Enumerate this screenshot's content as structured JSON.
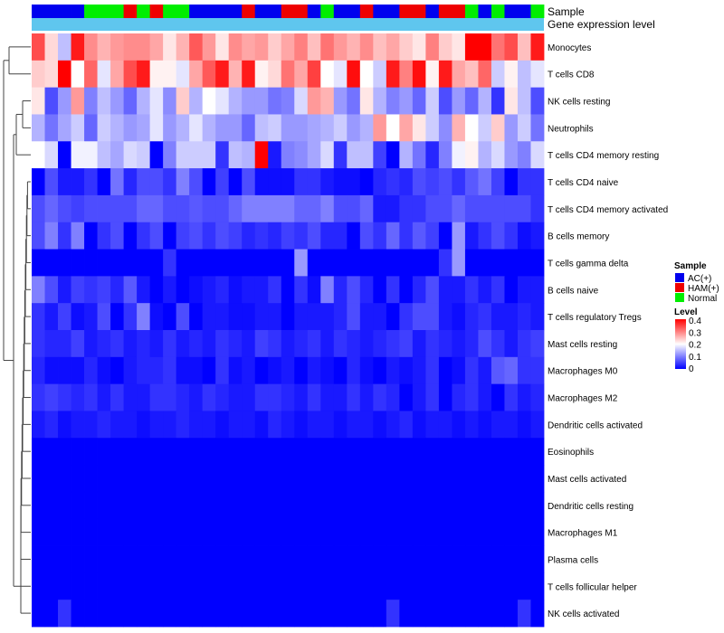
{
  "chart_data": {
    "type": "heatmap",
    "title": "",
    "annotation_rows": [
      "Sample",
      "Gene expression level"
    ],
    "sample_groups": [
      "AC",
      "AC",
      "AC",
      "AC",
      "N",
      "N",
      "N",
      "H",
      "N",
      "H",
      "N",
      "N",
      "AC",
      "AC",
      "AC",
      "AC",
      "H",
      "AC",
      "AC",
      "H",
      "H",
      "AC",
      "N",
      "AC",
      "AC",
      "H",
      "AC",
      "AC",
      "H",
      "H",
      "AC",
      "H",
      "H",
      "N",
      "AC",
      "N",
      "AC",
      "AC",
      "N"
    ],
    "gene_expression_level_color": "#5fc6ee",
    "sample_legend": {
      "title": "Sample",
      "entries": [
        {
          "key": "AC",
          "label": "AC(+)",
          "color": "#0000ee"
        },
        {
          "key": "H",
          "label": "HAM(+)",
          "color": "#ee0000"
        },
        {
          "key": "N",
          "label": "Normal",
          "color": "#00ee00"
        }
      ]
    },
    "level_legend": {
      "title": "Level",
      "ticks": [
        "0.4",
        "0.3",
        "0.2",
        "0.1",
        "0"
      ],
      "range": [
        0,
        0.4
      ]
    },
    "rows": [
      "Monocytes",
      "T cells CD8",
      "NK cells resting",
      "Neutrophils",
      "T cells CD4 memory resting",
      "T cells CD4 naive",
      "T cells CD4 memory activated",
      "B cells memory",
      "T cells gamma delta",
      "B cells naive",
      "T cells regulatory  Tregs",
      "Mast cells resting",
      "Macrophages M0",
      "Macrophages M2",
      "Dendritic cells activated",
      "Eosinophils",
      "Mast cells activated",
      "Dendritic cells resting",
      "Macrophages M1",
      "Plasma cells",
      "T cells follicular helper",
      "NK cells activated"
    ],
    "values": [
      [
        0.34,
        0.23,
        0.15,
        0.38,
        0.29,
        0.26,
        0.28,
        0.29,
        0.29,
        0.27,
        0.22,
        0.26,
        0.33,
        0.28,
        0.22,
        0.29,
        0.27,
        0.28,
        0.24,
        0.27,
        0.3,
        0.25,
        0.31,
        0.28,
        0.26,
        0.29,
        0.25,
        0.27,
        0.24,
        0.22,
        0.3,
        0.24,
        0.22,
        0.4,
        0.4,
        0.31,
        0.34,
        0.25,
        0.38
      ],
      [
        0.24,
        0.23,
        0.4,
        0.2,
        0.32,
        0.18,
        0.27,
        0.34,
        0.38,
        0.21,
        0.21,
        0.18,
        0.27,
        0.33,
        0.38,
        0.26,
        0.38,
        0.21,
        0.23,
        0.31,
        0.27,
        0.35,
        0.2,
        0.18,
        0.39,
        0.2,
        0.16,
        0.38,
        0.3,
        0.39,
        0.21,
        0.38,
        0.27,
        0.25,
        0.32,
        0.16,
        0.21,
        0.15,
        0.18
      ],
      [
        0.22,
        0.06,
        0.12,
        0.28,
        0.1,
        0.15,
        0.12,
        0.08,
        0.14,
        0.18,
        0.11,
        0.24,
        0.14,
        0.2,
        0.18,
        0.14,
        0.12,
        0.12,
        0.09,
        0.1,
        0.17,
        0.28,
        0.26,
        0.12,
        0.09,
        0.22,
        0.14,
        0.1,
        0.12,
        0.08,
        0.16,
        0.06,
        0.12,
        0.08,
        0.14,
        0.04,
        0.22,
        0.15,
        0.06
      ],
      [
        0.14,
        0.09,
        0.13,
        0.16,
        0.08,
        0.16,
        0.14,
        0.12,
        0.13,
        0.18,
        0.12,
        0.14,
        0.18,
        0.14,
        0.12,
        0.12,
        0.08,
        0.15,
        0.16,
        0.12,
        0.12,
        0.13,
        0.14,
        0.16,
        0.12,
        0.14,
        0.28,
        0.2,
        0.27,
        0.22,
        0.16,
        0.11,
        0.26,
        0.2,
        0.16,
        0.24,
        0.12,
        0.16,
        0.09
      ],
      [
        0.2,
        0.17,
        0.0,
        0.19,
        0.19,
        0.15,
        0.13,
        0.17,
        0.16,
        0.0,
        0.1,
        0.16,
        0.16,
        0.16,
        0.04,
        0.15,
        0.14,
        0.4,
        0.02,
        0.1,
        0.11,
        0.13,
        0.17,
        0.04,
        0.15,
        0.15,
        0.05,
        0.0,
        0.14,
        0.09,
        0.03,
        0.1,
        0.19,
        0.21,
        0.14,
        0.17,
        0.12,
        0.1,
        0.17
      ],
      [
        0.0,
        0.06,
        0.02,
        0.02,
        0.04,
        0.0,
        0.09,
        0.03,
        0.06,
        0.06,
        0.04,
        0.1,
        0.06,
        0.0,
        0.05,
        0.0,
        0.06,
        0.01,
        0.01,
        0.01,
        0.04,
        0.04,
        0.02,
        0.01,
        0.01,
        0.0,
        0.03,
        0.04,
        0.03,
        0.06,
        0.05,
        0.06,
        0.04,
        0.07,
        0.09,
        0.05,
        0.0,
        0.04,
        0.04
      ],
      [
        0.06,
        0.08,
        0.06,
        0.05,
        0.06,
        0.06,
        0.06,
        0.06,
        0.08,
        0.08,
        0.06,
        0.06,
        0.07,
        0.06,
        0.06,
        0.08,
        0.1,
        0.1,
        0.1,
        0.1,
        0.08,
        0.08,
        0.1,
        0.06,
        0.06,
        0.08,
        0.02,
        0.02,
        0.04,
        0.04,
        0.06,
        0.06,
        0.08,
        0.06,
        0.06,
        0.06,
        0.06,
        0.06,
        0.04
      ],
      [
        0.06,
        0.1,
        0.04,
        0.1,
        0.0,
        0.04,
        0.06,
        0.0,
        0.04,
        0.06,
        0.0,
        0.05,
        0.06,
        0.04,
        0.06,
        0.05,
        0.03,
        0.04,
        0.03,
        0.05,
        0.04,
        0.06,
        0.03,
        0.03,
        0.0,
        0.06,
        0.04,
        0.08,
        0.04,
        0.07,
        0.05,
        0.0,
        0.12,
        0.02,
        0.04,
        0.06,
        0.04,
        0.01,
        0.02
      ],
      [
        0.0,
        0.0,
        0.0,
        0.0,
        0.0,
        0.0,
        0.0,
        0.0,
        0.0,
        0.0,
        0.04,
        0.0,
        0.0,
        0.0,
        0.0,
        0.0,
        0.0,
        0.0,
        0.0,
        0.0,
        0.12,
        0.0,
        0.0,
        0.0,
        0.0,
        0.0,
        0.0,
        0.0,
        0.0,
        0.0,
        0.0,
        0.04,
        0.12,
        0.0,
        0.0,
        0.0,
        0.0,
        0.0,
        0.0
      ],
      [
        0.1,
        0.06,
        0.02,
        0.05,
        0.04,
        0.05,
        0.03,
        0.07,
        0.02,
        0.0,
        0.02,
        0.0,
        0.01,
        0.02,
        0.03,
        0.01,
        0.02,
        0.02,
        0.04,
        0.0,
        0.04,
        0.01,
        0.1,
        0.03,
        0.06,
        0.03,
        0.0,
        0.04,
        0.0,
        0.03,
        0.06,
        0.02,
        0.02,
        0.04,
        0.02,
        0.04,
        0.0,
        0.02,
        0.02
      ],
      [
        0.04,
        0.02,
        0.05,
        0.01,
        0.02,
        0.06,
        0.0,
        0.04,
        0.1,
        0.01,
        0.0,
        0.06,
        0.0,
        0.02,
        0.02,
        0.01,
        0.01,
        0.02,
        0.02,
        0.0,
        0.02,
        0.02,
        0.02,
        0.03,
        0.06,
        0.02,
        0.02,
        0.0,
        0.04,
        0.06,
        0.06,
        0.02,
        0.01,
        0.03,
        0.04,
        0.02,
        0.02,
        0.03,
        0.02
      ],
      [
        0.04,
        0.03,
        0.03,
        0.05,
        0.02,
        0.03,
        0.04,
        0.02,
        0.03,
        0.02,
        0.04,
        0.02,
        0.03,
        0.02,
        0.04,
        0.03,
        0.02,
        0.05,
        0.04,
        0.02,
        0.03,
        0.04,
        0.02,
        0.04,
        0.03,
        0.02,
        0.03,
        0.04,
        0.05,
        0.02,
        0.04,
        0.03,
        0.02,
        0.03,
        0.06,
        0.04,
        0.02,
        0.04,
        0.05
      ],
      [
        0.03,
        0.01,
        0.01,
        0.01,
        0.03,
        0.01,
        0.0,
        0.02,
        0.03,
        0.03,
        0.04,
        0.01,
        0.01,
        0.0,
        0.04,
        0.01,
        0.02,
        0.0,
        0.01,
        0.02,
        0.0,
        0.02,
        0.01,
        0.0,
        0.03,
        0.01,
        0.0,
        0.02,
        0.01,
        0.02,
        0.04,
        0.0,
        0.01,
        0.04,
        0.02,
        0.07,
        0.08,
        0.04,
        0.04
      ],
      [
        0.04,
        0.05,
        0.04,
        0.03,
        0.04,
        0.02,
        0.04,
        0.02,
        0.02,
        0.04,
        0.04,
        0.03,
        0.02,
        0.04,
        0.03,
        0.02,
        0.02,
        0.04,
        0.04,
        0.03,
        0.02,
        0.04,
        0.02,
        0.02,
        0.04,
        0.02,
        0.04,
        0.03,
        0.0,
        0.02,
        0.04,
        0.0,
        0.03,
        0.04,
        0.02,
        0.0,
        0.04,
        0.02,
        0.03
      ],
      [
        0.02,
        0.03,
        0.01,
        0.02,
        0.02,
        0.03,
        0.02,
        0.02,
        0.01,
        0.02,
        0.02,
        0.03,
        0.02,
        0.02,
        0.01,
        0.02,
        0.02,
        0.01,
        0.03,
        0.02,
        0.01,
        0.02,
        0.02,
        0.01,
        0.02,
        0.02,
        0.01,
        0.02,
        0.03,
        0.01,
        0.02,
        0.02,
        0.01,
        0.02,
        0.01,
        0.02,
        0.02,
        0.01,
        0.02
      ],
      [
        0,
        0,
        0,
        0,
        0,
        0,
        0,
        0,
        0,
        0,
        0,
        0,
        0,
        0,
        0,
        0,
        0,
        0,
        0,
        0,
        0,
        0,
        0,
        0,
        0,
        0,
        0,
        0,
        0,
        0,
        0,
        0,
        0,
        0,
        0,
        0,
        0,
        0,
        0
      ],
      [
        0,
        0,
        0,
        0,
        0,
        0,
        0,
        0,
        0,
        0,
        0,
        0,
        0,
        0,
        0,
        0,
        0,
        0,
        0,
        0,
        0,
        0,
        0,
        0,
        0,
        0,
        0,
        0,
        0,
        0,
        0,
        0,
        0,
        0,
        0,
        0,
        0,
        0,
        0
      ],
      [
        0,
        0,
        0,
        0,
        0,
        0,
        0,
        0,
        0,
        0,
        0,
        0,
        0,
        0,
        0,
        0,
        0,
        0,
        0,
        0,
        0,
        0,
        0,
        0,
        0,
        0,
        0,
        0,
        0,
        0,
        0,
        0,
        0,
        0,
        0,
        0,
        0,
        0,
        0
      ],
      [
        0,
        0,
        0,
        0,
        0,
        0,
        0,
        0,
        0,
        0,
        0,
        0,
        0,
        0,
        0,
        0,
        0,
        0,
        0,
        0,
        0,
        0,
        0,
        0,
        0,
        0,
        0,
        0,
        0,
        0,
        0,
        0,
        0,
        0,
        0,
        0,
        0,
        0,
        0
      ],
      [
        0,
        0,
        0,
        0,
        0,
        0,
        0,
        0,
        0,
        0,
        0,
        0,
        0,
        0,
        0,
        0,
        0,
        0,
        0,
        0,
        0,
        0,
        0,
        0,
        0,
        0,
        0,
        0,
        0,
        0,
        0,
        0,
        0,
        0,
        0,
        0,
        0,
        0,
        0
      ],
      [
        0,
        0,
        0,
        0,
        0,
        0,
        0,
        0,
        0,
        0,
        0,
        0,
        0,
        0,
        0,
        0,
        0,
        0,
        0,
        0,
        0,
        0,
        0,
        0,
        0,
        0,
        0,
        0,
        0,
        0,
        0,
        0,
        0,
        0,
        0,
        0,
        0,
        0,
        0
      ],
      [
        0,
        0,
        0.04,
        0,
        0,
        0,
        0,
        0,
        0,
        0,
        0,
        0,
        0,
        0,
        0,
        0,
        0,
        0,
        0,
        0,
        0,
        0,
        0,
        0,
        0,
        0,
        0,
        0.04,
        0,
        0,
        0,
        0,
        0,
        0,
        0,
        0,
        0,
        0.04,
        0
      ]
    ]
  }
}
